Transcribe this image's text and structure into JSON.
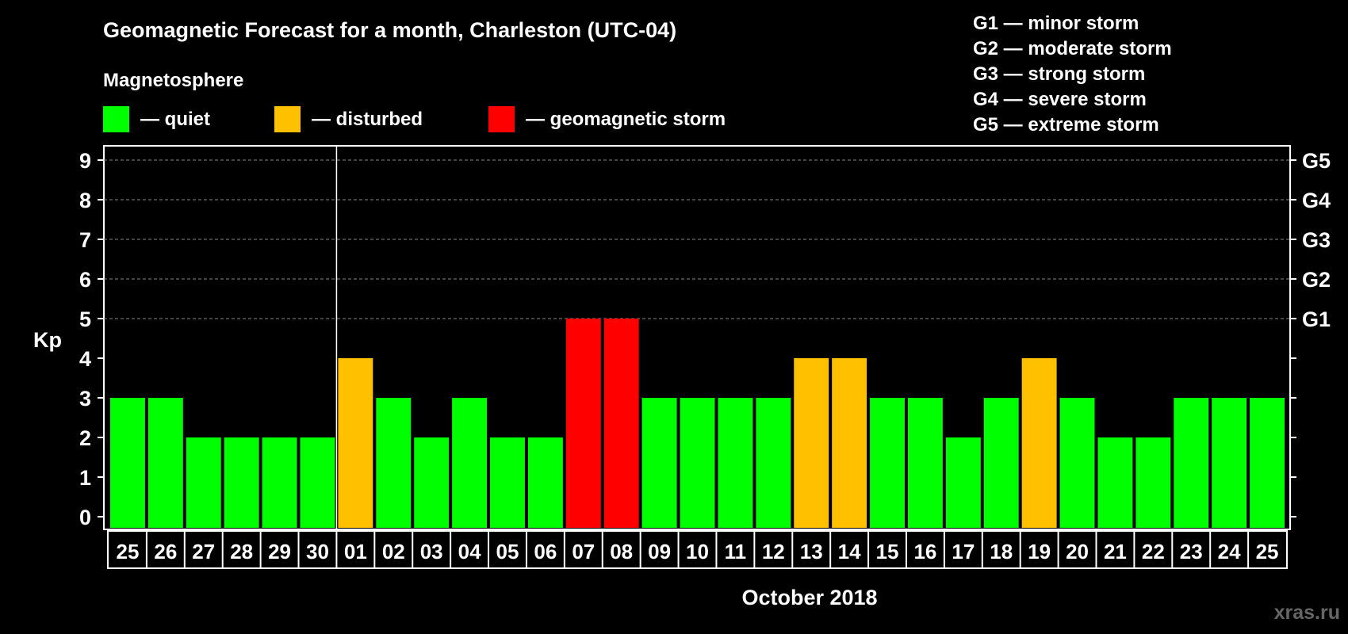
{
  "chart_data": {
    "type": "bar",
    "title": "Geomagnetic Forecast for a month, Charleston (UTC-04)",
    "legend_title": "Magnetosphere",
    "legend": [
      {
        "label": "— quiet",
        "color": "#00ff00"
      },
      {
        "label": "— disturbed",
        "color": "#ffc000"
      },
      {
        "label": "— geomagnetic storm",
        "color": "#ff0000"
      }
    ],
    "g_scale": [
      "G1 — minor storm",
      "G2 — moderate storm",
      "G3 — strong storm",
      "G4 — severe storm",
      "G5 — extreme storm"
    ],
    "ylabel": "Kp",
    "ylim": [
      0,
      9
    ],
    "yticks": [
      0,
      1,
      2,
      3,
      4,
      5,
      6,
      7,
      8,
      9
    ],
    "right_ticks": [
      {
        "value": 5,
        "label": "G1"
      },
      {
        "value": 6,
        "label": "G2"
      },
      {
        "value": 7,
        "label": "G3"
      },
      {
        "value": 8,
        "label": "G4"
      },
      {
        "value": 9,
        "label": "G5"
      }
    ],
    "month_label": "October 2018",
    "grid": "dashed horizontal",
    "categories": [
      "25",
      "26",
      "27",
      "28",
      "29",
      "30",
      "01",
      "02",
      "03",
      "04",
      "05",
      "06",
      "07",
      "08",
      "09",
      "10",
      "11",
      "12",
      "13",
      "14",
      "15",
      "16",
      "17",
      "18",
      "19",
      "20",
      "21",
      "22",
      "23",
      "24",
      "25"
    ],
    "values": [
      3,
      3,
      2,
      2,
      2,
      2,
      4,
      3,
      2,
      3,
      2,
      2,
      5,
      5,
      3,
      3,
      3,
      3,
      4,
      4,
      3,
      3,
      2,
      3,
      4,
      3,
      2,
      2,
      3,
      3,
      3
    ],
    "month_boundary_after": "30",
    "colors": {
      "quiet": "#00ff00",
      "disturbed": "#ffc000",
      "storm": "#ff0000"
    }
  },
  "watermark": "xras.ru"
}
